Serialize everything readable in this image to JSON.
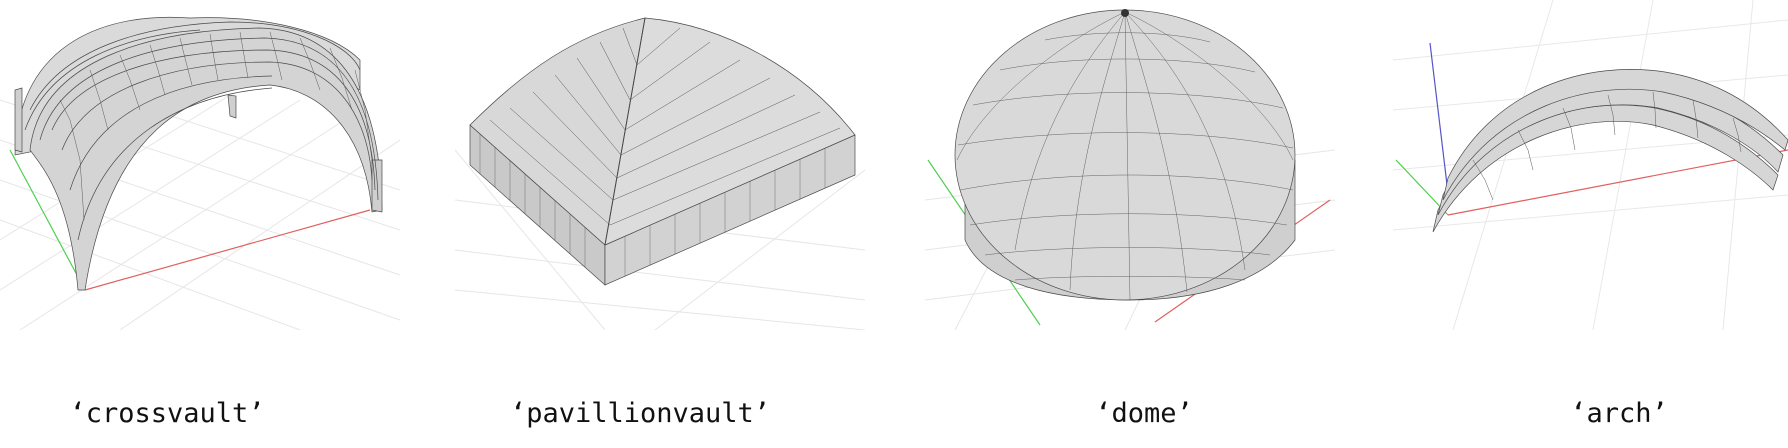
{
  "figure": {
    "panels": [
      {
        "id": "crossvault",
        "caption": "‘crossvault’"
      },
      {
        "id": "pavillionvault",
        "caption": "‘pavillionvault’"
      },
      {
        "id": "dome",
        "caption": "‘dome’"
      },
      {
        "id": "arch",
        "caption": "‘arch’"
      }
    ],
    "colors": {
      "surface_fill": "#d6d6d6",
      "mesh_line": "#4a4a4a",
      "grid_line": "#e4e4e4",
      "x_axis": "#e06060",
      "y_axis": "#4fcf4f",
      "z_axis": "#5555cc"
    }
  }
}
